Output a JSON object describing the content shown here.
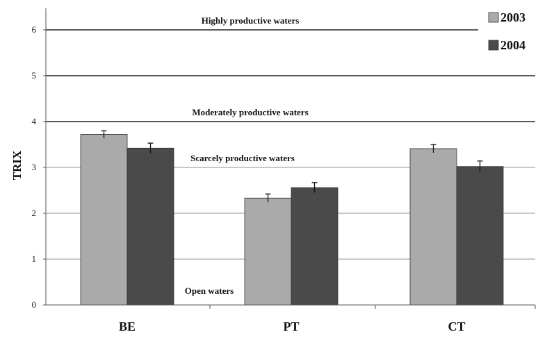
{
  "chart_data": {
    "type": "bar",
    "categories": [
      "BE",
      "PT",
      "CT"
    ],
    "series": [
      {
        "name": "2003",
        "values": [
          3.72,
          2.33,
          3.41
        ],
        "errors": [
          0.08,
          0.09,
          0.09
        ],
        "color": "#aaaaaa"
      },
      {
        "name": "2004",
        "values": [
          3.42,
          2.56,
          3.02
        ],
        "errors": [
          0.11,
          0.11,
          0.12
        ],
        "color": "#4a4a4a"
      }
    ],
    "ylabel": "TRIX",
    "xlabel": "",
    "ylim": [
      0,
      6.5
    ],
    "yticks": [
      0,
      1,
      2,
      3,
      4,
      5,
      6
    ],
    "grid": true,
    "legend": "top-right",
    "reference_lines": [
      {
        "value": 6,
        "label": "Highly productive waters"
      },
      {
        "value": 5,
        "label": ""
      },
      {
        "value": 4,
        "label": "Moderately productive waters"
      }
    ],
    "band_labels": [
      {
        "value": 3.2,
        "label": "Scarcely productive waters"
      },
      {
        "value": 0.3,
        "label": "Open waters"
      }
    ]
  }
}
